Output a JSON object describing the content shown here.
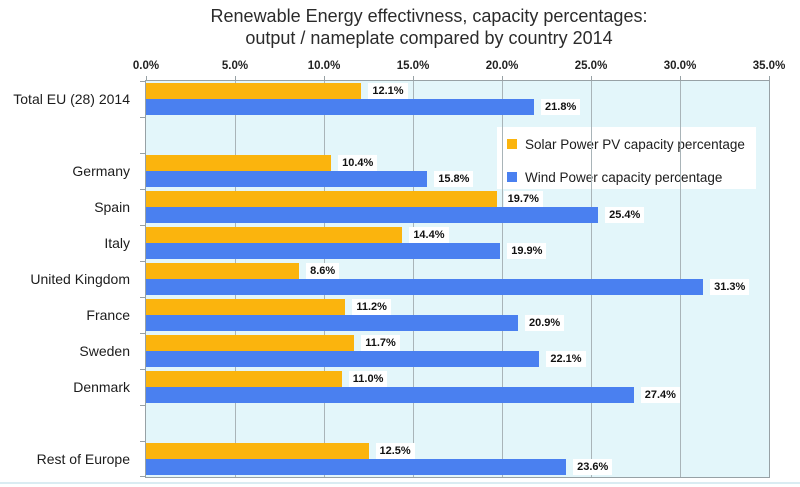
{
  "title": {
    "line1": "Renewable Energy effectivness, capacity percentages:",
    "line2": "output / nameplate compared by country 2014"
  },
  "legend": {
    "items": [
      {
        "label": "Solar Power PV capacity percentage",
        "color": "#FBB40D"
      },
      {
        "label": "Wind Power capacity percentage",
        "color": "#4A80F0"
      }
    ]
  },
  "chart_data": {
    "type": "bar",
    "orientation": "horizontal",
    "title": "Renewable Energy effectivness, capacity percentages: output / nameplate compared by country 2014",
    "xlabel": "",
    "ylabel": "",
    "categories": [
      "Total EU (28) 2014",
      "Germany",
      "Spain",
      "Italy",
      "United Kingdom",
      "France",
      "Sweden",
      "Denmark",
      "Rest of Europe"
    ],
    "series": [
      {
        "name": "Solar Power PV capacity percentage",
        "color": "#FBB40D",
        "values": [
          12.1,
          10.4,
          19.7,
          14.4,
          8.6,
          11.2,
          11.7,
          11.0,
          12.5
        ],
        "labels": [
          "12.1%",
          "10.4%",
          "19.7%",
          "14.4%",
          "8.6%",
          "11.2%",
          "11.7%",
          "11.0%",
          "12.5%"
        ]
      },
      {
        "name": "Wind Power capacity percentage",
        "color": "#4A80F0",
        "values": [
          21.8,
          15.8,
          25.4,
          19.9,
          31.3,
          20.9,
          22.1,
          27.4,
          23.6
        ],
        "labels": [
          "21.8%",
          "15.8%",
          "25.4%",
          "19.9%",
          "31.3%",
          "20.9%",
          "22.1%",
          "27.4%",
          "23.6%"
        ]
      }
    ],
    "x_axis": {
      "min": 0,
      "max": 35,
      "step": 5,
      "position": "top",
      "tick_labels": [
        "0.0%",
        "5.0%",
        "10.0%",
        "15.0%",
        "20.0%",
        "25.0%",
        "30.0%",
        "35.0%"
      ]
    },
    "layout": {
      "grid": true,
      "legend_position": "inside-top-right",
      "blank_row_after_category_index": [
        0,
        7
      ],
      "plot_background": "#E3F6FA",
      "gridline_color": "#A9B4B8",
      "border_color": "#97A1A5"
    }
  }
}
